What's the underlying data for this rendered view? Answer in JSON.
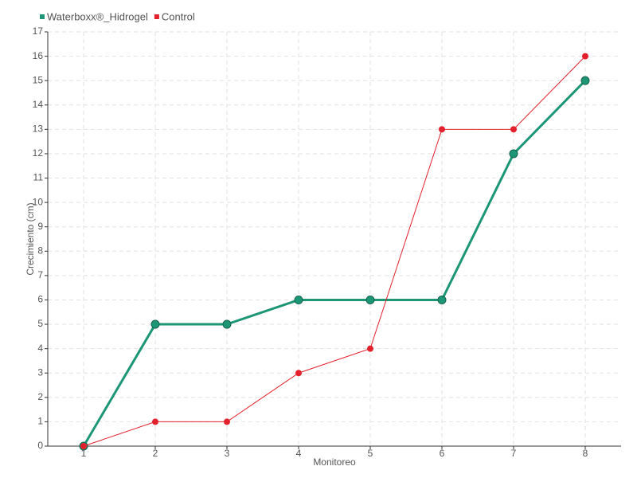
{
  "chart_data": {
    "type": "line",
    "x": [
      1,
      2,
      3,
      4,
      5,
      6,
      7,
      8
    ],
    "xlim": [
      0.5,
      8.5
    ],
    "xticks": [
      1,
      2,
      3,
      4,
      5,
      6,
      7,
      8
    ],
    "ylim": [
      0,
      17
    ],
    "yticks": [
      0,
      1,
      2,
      3,
      4,
      5,
      6,
      7,
      8,
      9,
      10,
      11,
      12,
      13,
      14,
      15,
      16,
      17
    ],
    "x_label": "Monitoreo",
    "y_label": "Crecimiento (cm)",
    "grid": true,
    "legend": "top-left",
    "series": [
      {
        "name": "Waterboxx®_Hidrogel",
        "color": "#1d9676",
        "values": [
          0,
          5,
          5,
          6,
          6,
          6,
          12,
          15
        ]
      },
      {
        "name": "Control",
        "color": "#e3202c",
        "values": [
          0,
          1,
          1,
          3,
          4,
          13,
          13,
          16
        ]
      }
    ]
  }
}
